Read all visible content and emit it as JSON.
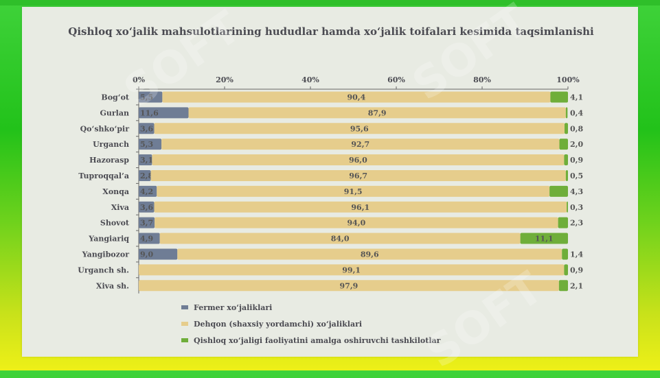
{
  "chart_data": {
    "type": "bar",
    "stacked": true,
    "orientation": "horizontal",
    "title": "Qishloq xo‘jalik mahsulotlarining hududlar hamda xo‘jalik toifalari kesimida taqsimlanishi",
    "categories": [
      "Bog‘ot",
      "Gurlan",
      "Qo‘shko‘pir",
      "Urganch",
      "Hazorasp",
      "Tuproqqal’a",
      "Xonqa",
      "Xiva",
      "Shovot",
      "Yangiariq",
      "Yangibozor",
      "Urganch sh.",
      "Xiva sh."
    ],
    "series": [
      {
        "name": "Fermer xo‘jaliklari",
        "color": "#6f7d95",
        "values": [
          5.5,
          11.6,
          3.6,
          5.3,
          3.1,
          2.8,
          4.2,
          3.6,
          3.7,
          4.9,
          9.0,
          0,
          0
        ],
        "labels": [
          "5,5",
          "11,6",
          "3,6",
          "5,3",
          "3,1",
          "2,8",
          "4,2",
          "3,6",
          "3,7",
          "4,9",
          "9,0",
          "0",
          "0"
        ]
      },
      {
        "name": "Dehqon (shaxsiy yordamchi) xo‘jaliklari",
        "color": "#e6cd8c",
        "values": [
          90.4,
          87.9,
          95.6,
          92.7,
          96.0,
          96.7,
          91.5,
          96.1,
          94.0,
          84.0,
          89.6,
          99.1,
          97.9
        ],
        "labels": [
          "90,4",
          "87,9",
          "95,6",
          "92,7",
          "96,0",
          "96,7",
          "91,5",
          "96,1",
          "94,0",
          "84,0",
          "89,6",
          "99,1",
          "97,9"
        ]
      },
      {
        "name": "Qishloq xo‘jaligi faoliyatini amalga oshiruvchi tashkilotlar",
        "color": "#6fae3a",
        "values": [
          4.1,
          0.4,
          0.8,
          2.0,
          0.9,
          0.5,
          4.3,
          0.3,
          2.3,
          11.1,
          1.4,
          0.9,
          2.1
        ],
        "labels": [
          "4,1",
          "0,4",
          "0,8",
          "2,0",
          "0,9",
          "0,5",
          "4,3",
          "0,3",
          "2,3",
          "11,1",
          "1,4",
          "0,9",
          "2,1"
        ]
      }
    ],
    "xlim": [
      0,
      100
    ],
    "xticks": [
      "0%",
      "20%",
      "40%",
      "60%",
      "80%",
      "100%"
    ],
    "grid": false,
    "legend_position": "bottom-left"
  },
  "watermark": "SOFT"
}
